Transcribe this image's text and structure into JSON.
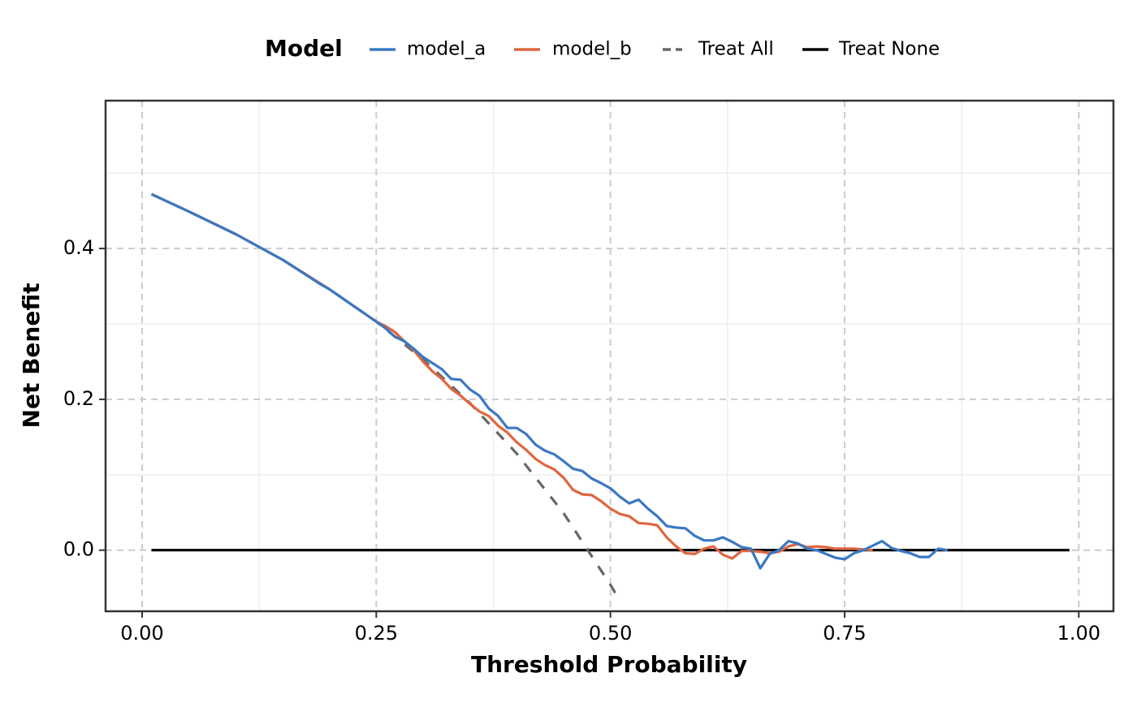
{
  "chart_data": {
    "type": "line",
    "x_label": "Threshold Probability",
    "y_label": "Net Benefit",
    "legend_title": "Model",
    "legend_position": "top",
    "xlim": [
      -0.039,
      1.037
    ],
    "ylim": [
      -0.081,
      0.596
    ],
    "xticks": [
      {
        "value": 0,
        "label": "0.00"
      },
      {
        "value": 0.25,
        "label": "0.25"
      },
      {
        "value": 0.5,
        "label": "0.50"
      },
      {
        "value": 0.75,
        "label": "0.75"
      },
      {
        "value": 1,
        "label": "1.00"
      }
    ],
    "yticks": [
      {
        "value": 0,
        "label": "0.0"
      },
      {
        "value": 0.2,
        "label": "0.2"
      },
      {
        "value": 0.4,
        "label": "0.4"
      }
    ],
    "x_minor_grid": [
      0.125,
      0.375,
      0.625,
      0.875
    ],
    "y_minor_grid": [
      0.1,
      0.3,
      0.5
    ],
    "grid": true,
    "series": [
      {
        "name": "model_a",
        "color": "#3a78c3",
        "linetype": "solid",
        "x": [
          0.01,
          0.05,
          0.1,
          0.15,
          0.19,
          0.2,
          0.25,
          0.26,
          0.27,
          0.28,
          0.29,
          0.3,
          0.31,
          0.32,
          0.33,
          0.34,
          0.35,
          0.36,
          0.37,
          0.38,
          0.39,
          0.4,
          0.41,
          0.42,
          0.43,
          0.44,
          0.45,
          0.46,
          0.47,
          0.48,
          0.49,
          0.5,
          0.51,
          0.52,
          0.53,
          0.54,
          0.55,
          0.56,
          0.57,
          0.58,
          0.59,
          0.6,
          0.61,
          0.62,
          0.63,
          0.64,
          0.65,
          0.66,
          0.67,
          0.68,
          0.69,
          0.7,
          0.71,
          0.72,
          0.73,
          0.74,
          0.75,
          0.76,
          0.77,
          0.78,
          0.79,
          0.8,
          0.81,
          0.82,
          0.83,
          0.84,
          0.85,
          0.86
        ],
        "values": [
          0.472,
          0.449,
          0.419,
          0.385,
          0.353,
          0.346,
          0.303,
          0.294,
          0.283,
          0.277,
          0.267,
          0.256,
          0.248,
          0.24,
          0.227,
          0.226,
          0.213,
          0.205,
          0.188,
          0.178,
          0.162,
          0.162,
          0.154,
          0.14,
          0.132,
          0.127,
          0.118,
          0.108,
          0.105,
          0.095,
          0.089,
          0.082,
          0.071,
          0.062,
          0.067,
          0.055,
          0.045,
          0.032,
          0.03,
          0.029,
          0.019,
          0.013,
          0.013,
          0.017,
          0.011,
          0.004,
          0.002,
          -0.024,
          -0.005,
          0,
          0.012,
          0.009,
          0.002,
          0,
          -0.005,
          -0.01,
          -0.012,
          -0.004,
          0,
          0.006,
          0.012,
          0.003,
          -0.001,
          -0.004,
          -0.009,
          -0.009,
          0.002,
          0
        ]
      },
      {
        "name": "model_b",
        "color": "#e0663f",
        "linetype": "solid",
        "x": [
          0.01,
          0.05,
          0.1,
          0.15,
          0.2,
          0.25,
          0.26,
          0.27,
          0.28,
          0.29,
          0.3,
          0.31,
          0.32,
          0.33,
          0.34,
          0.35,
          0.36,
          0.37,
          0.38,
          0.39,
          0.4,
          0.41,
          0.42,
          0.43,
          0.44,
          0.45,
          0.46,
          0.47,
          0.48,
          0.49,
          0.5,
          0.51,
          0.52,
          0.53,
          0.54,
          0.55,
          0.56,
          0.57,
          0.58,
          0.59,
          0.6,
          0.61,
          0.62,
          0.63,
          0.64,
          0.65,
          0.66,
          0.67,
          0.68,
          0.69,
          0.7,
          0.71,
          0.72,
          0.73,
          0.74,
          0.75,
          0.76,
          0.77,
          0.78
        ],
        "values": [
          0.472,
          0.449,
          0.419,
          0.385,
          0.346,
          0.303,
          0.297,
          0.289,
          0.277,
          0.265,
          0.25,
          0.237,
          0.227,
          0.214,
          0.205,
          0.194,
          0.184,
          0.178,
          0.165,
          0.156,
          0.143,
          0.133,
          0.121,
          0.113,
          0.107,
          0.096,
          0.08,
          0.074,
          0.073,
          0.065,
          0.055,
          0.048,
          0.045,
          0.036,
          0.035,
          0.033,
          0.017,
          0.005,
          -0.004,
          -0.005,
          0.002,
          0.005,
          -0.006,
          -0.011,
          -0.001,
          -0.001,
          -0.002,
          -0.004,
          -0.002,
          0.005,
          0.008,
          0.004,
          0.005,
          0.004,
          0.002,
          0.002,
          0.002,
          0.001,
          0
        ]
      },
      {
        "name": "Treat All",
        "color": "#666666",
        "linetype": "dashed",
        "x": [
          0.01,
          0.05,
          0.1,
          0.15,
          0.2,
          0.25,
          0.3,
          0.35,
          0.4,
          0.45,
          0.5,
          0.51
        ],
        "values": [
          0.472,
          0.449,
          0.419,
          0.385,
          0.346,
          0.303,
          0.253,
          0.195,
          0.128,
          0.049,
          -0.046,
          -0.067
        ]
      },
      {
        "name": "Treat None",
        "color": "#000000",
        "linetype": "solid",
        "x": [
          0.01,
          0.99
        ],
        "values": [
          0,
          0
        ]
      }
    ]
  }
}
